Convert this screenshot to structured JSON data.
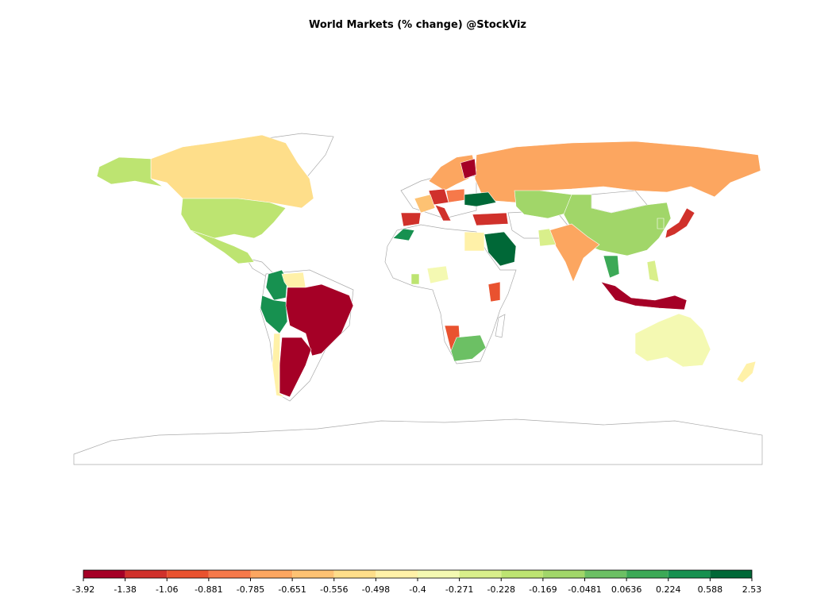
{
  "chart_data": {
    "type": "choropleth",
    "title": "World Markets (% change) @StockViz",
    "legend": {
      "breaks": [
        -3.92,
        -1.38,
        -1.06,
        -0.881,
        -0.785,
        -0.651,
        -0.556,
        -0.498,
        -0.4,
        -0.271,
        -0.228,
        -0.169,
        -0.0481,
        0.0636,
        0.224,
        0.588,
        2.53
      ],
      "colors": [
        "#a50026",
        "#d0312b",
        "#e9522f",
        "#f6794a",
        "#fca660",
        "#fdc273",
        "#fede8a",
        "#fff1a8",
        "#f4f9b2",
        "#d9ef8b",
        "#bde471",
        "#a1d669",
        "#6cc064",
        "#3ca956",
        "#179150",
        "#006837"
      ]
    }
  }
}
